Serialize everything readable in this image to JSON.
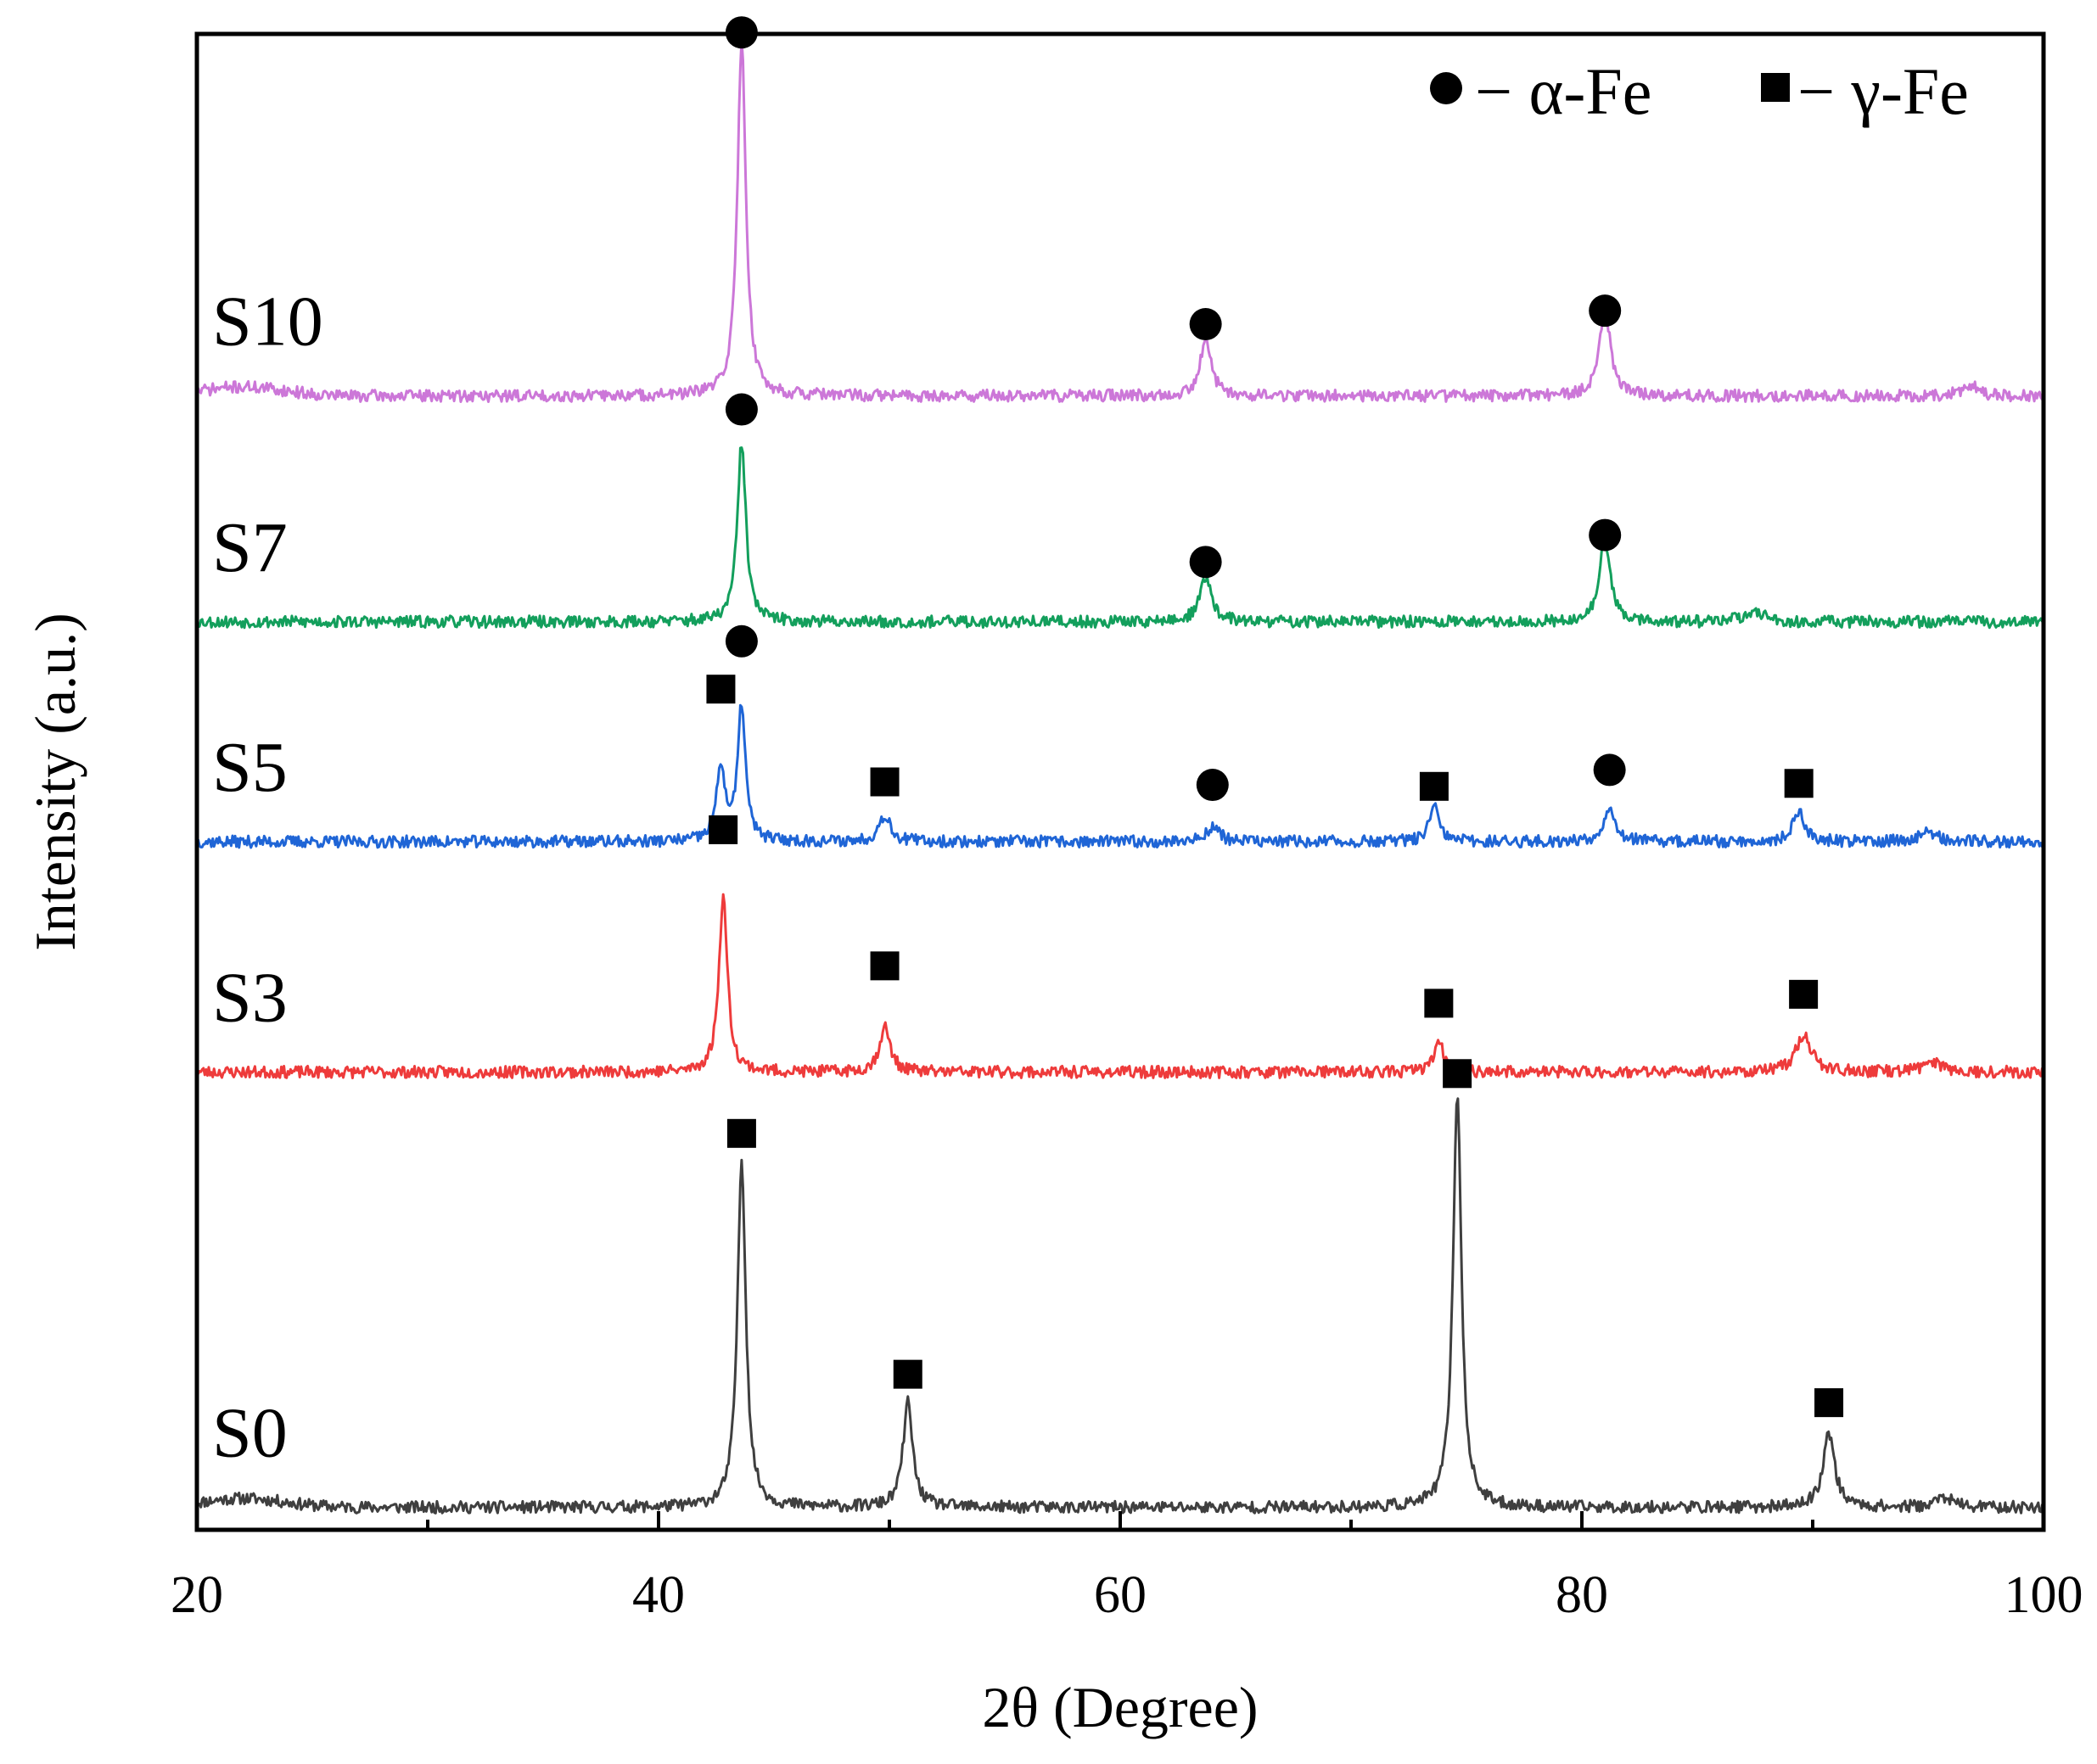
{
  "chart_data": {
    "type": "line",
    "title": "",
    "xlabel": "2θ (Degree)",
    "ylabel": "Intensity (a.u.)",
    "xlim": [
      20,
      100
    ],
    "x_ticks": [
      20,
      40,
      60,
      80,
      100
    ],
    "x_minor_ticks": [
      30,
      50,
      70,
      90
    ],
    "y_ticks": [],
    "ylim": [
      0,
      1
    ],
    "legend": {
      "position": "top-right",
      "items": [
        {
          "marker": "circle",
          "text": "− α-Fe",
          "phase": "alpha"
        },
        {
          "marker": "square",
          "text": "− γ-Fe",
          "phase": "gamma"
        }
      ]
    },
    "series": [
      {
        "name": "S0",
        "color": "#3f3f3f",
        "baseline": 0.015,
        "noise": 0.008,
        "seed": 11,
        "humps": [
          {
            "x": 22,
            "h": 0.006,
            "w": 2.5
          }
        ],
        "peaks": [
          {
            "x": 43.6,
            "h": 0.232,
            "w": 0.22,
            "phase": "gamma",
            "marker_y": 0.265
          },
          {
            "x": 50.8,
            "h": 0.07,
            "w": 0.25,
            "phase": "gamma",
            "marker_y": 0.104
          },
          {
            "x": 74.6,
            "h": 0.277,
            "w": 0.22,
            "phase": "gamma",
            "marker_y": 0.305
          },
          {
            "x": 90.7,
            "h": 0.05,
            "w": 0.3,
            "phase": "gamma",
            "marker_y": 0.085
          },
          {
            "x": 95.7,
            "h": 0.007,
            "w": 0.4
          }
        ]
      },
      {
        "name": "S3",
        "color": "#ee3b3b",
        "baseline": 0.306,
        "noise": 0.008,
        "seed": 23,
        "humps": [],
        "peaks": [
          {
            "x": 42.8,
            "h": 0.118,
            "w": 0.22,
            "phase": "gamma",
            "marker_y": 0.468
          },
          {
            "x": 49.8,
            "h": 0.03,
            "w": 0.28,
            "phase": "gamma",
            "marker_y": 0.377
          },
          {
            "x": 73.8,
            "h": 0.019,
            "w": 0.28,
            "phase": "gamma",
            "marker_y": 0.352
          },
          {
            "x": 89.6,
            "h": 0.025,
            "w": 0.4,
            "phase": "gamma",
            "marker_y": 0.358
          },
          {
            "x": 95.2,
            "h": 0.007,
            "w": 0.5
          }
        ]
      },
      {
        "name": "S5",
        "color": "#1f65d6",
        "baseline": 0.46,
        "noise": 0.008,
        "seed": 37,
        "humps": [],
        "peaks": [
          {
            "x": 42.7,
            "h": 0.05,
            "w": 0.22,
            "phase": "gamma",
            "marker_y": 0.562
          },
          {
            "x": 43.6,
            "h": 0.091,
            "w": 0.2,
            "phase": "alpha",
            "marker_y": 0.594
          },
          {
            "x": 49.8,
            "h": 0.018,
            "w": 0.3,
            "phase": "gamma",
            "marker_y": 0.5
          },
          {
            "x": 64.0,
            "h": 0.01,
            "w": 0.35,
            "phase": "alpha",
            "marker_y": 0.498
          },
          {
            "x": 73.6,
            "h": 0.023,
            "w": 0.25,
            "phase": "gamma",
            "marker_y": 0.497
          },
          {
            "x": 81.2,
            "h": 0.023,
            "w": 0.3,
            "phase": "alpha",
            "marker_y": 0.508
          },
          {
            "x": 89.4,
            "h": 0.02,
            "w": 0.3,
            "phase": "gamma",
            "marker_y": 0.499
          },
          {
            "x": 95.0,
            "h": 0.006,
            "w": 0.5
          }
        ]
      },
      {
        "name": "S7",
        "color": "#139f5c",
        "baseline": 0.607,
        "noise": 0.008,
        "seed": 53,
        "humps": [
          {
            "x": 87.5,
            "h": 0.005,
            "w": 1.0
          }
        ],
        "peaks": [
          {
            "x": 43.6,
            "h": 0.12,
            "w": 0.22,
            "phase": "alpha",
            "marker_y": 0.749
          },
          {
            "x": 63.7,
            "h": 0.03,
            "w": 0.3,
            "phase": "alpha",
            "marker_y": 0.647
          },
          {
            "x": 81.0,
            "h": 0.055,
            "w": 0.28,
            "phase": "alpha",
            "marker_y": 0.665
          }
        ]
      },
      {
        "name": "S10",
        "color": "#cc77d8",
        "baseline": 0.758,
        "noise": 0.008,
        "seed": 71,
        "humps": [
          {
            "x": 22,
            "h": 0.006,
            "w": 2.5
          }
        ],
        "peaks": [
          {
            "x": 43.6,
            "h": 0.238,
            "w": 0.22,
            "phase": "alpha",
            "marker_y": 1.001
          },
          {
            "x": 63.7,
            "h": 0.036,
            "w": 0.3,
            "phase": "alpha",
            "marker_y": 0.806
          },
          {
            "x": 81.0,
            "h": 0.058,
            "w": 0.28,
            "phase": "alpha",
            "marker_y": 0.815
          },
          {
            "x": 96.8,
            "h": 0.008,
            "w": 0.4
          }
        ]
      }
    ]
  }
}
